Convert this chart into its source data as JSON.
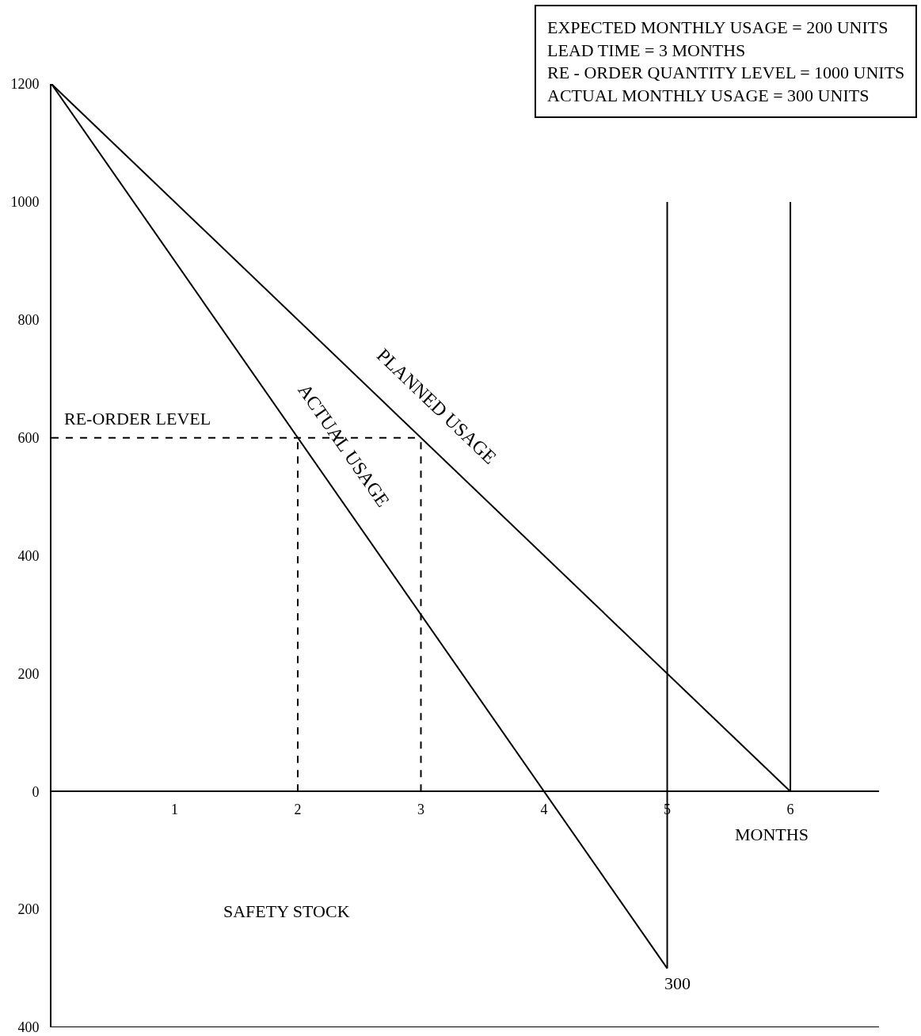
{
  "chart_data": {
    "type": "line",
    "xlabel": "MONTHS",
    "xlim": [
      0,
      6.72
    ],
    "ylim": [
      -400,
      1200
    ],
    "xticks": [
      1,
      2,
      3,
      4,
      5,
      6
    ],
    "yticks": [
      {
        "value": -400,
        "label": "400"
      },
      {
        "value": -200,
        "label": "200"
      },
      0,
      200,
      400,
      600,
      800,
      1000,
      1200
    ],
    "grid": false,
    "legend": false,
    "series": [
      {
        "name": "PLANNED USAGE",
        "color": "#000000",
        "x": [
          0,
          6
        ],
        "values": [
          1200,
          0
        ]
      },
      {
        "name": "ACTUAL USAGE",
        "color": "#000000",
        "x": [
          0,
          5
        ],
        "values": [
          1200,
          -300
        ]
      },
      {
        "color": "#000000",
        "x": [
          5,
          5
        ],
        "values": [
          -300,
          1000
        ]
      },
      {
        "color": "#000000",
        "x": [
          6,
          6
        ],
        "values": [
          0,
          1000
        ]
      },
      {
        "color": "#000000",
        "x": [
          0,
          3
        ],
        "values": [
          600,
          600
        ],
        "line_style": "dashed"
      },
      {
        "color": "#000000",
        "x": [
          2,
          2
        ],
        "values": [
          0,
          600
        ],
        "line_style": "dashed"
      },
      {
        "color": "#000000",
        "x": [
          3,
          3
        ],
        "values": [
          0,
          600
        ],
        "line_style": "dashed"
      }
    ],
    "annotations": [
      "EXPECTED MONTHLY USAGE = 200 UNITS\nLEAD TIME = 3 MONTHS\nRE - ORDER QUANTITY LEVEL = 1000 UNITS\nACTUAL MONTHLY USAGE = 300 UNITS",
      "SAFETY STOCK",
      {
        "text": "RE-ORDER LEVEL",
        "x": 0,
        "y": 600
      },
      {
        "text": "300",
        "x": 5,
        "y": -300
      }
    ]
  }
}
